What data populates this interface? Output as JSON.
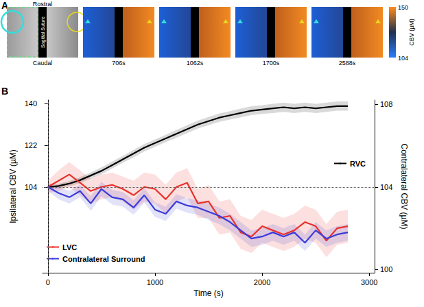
{
  "panel_a": {
    "label": "A",
    "orientation_labels": {
      "top": "Rostral",
      "bottom": "Caudal"
    },
    "midline_label": "Sagittal Suture",
    "frame_labels": [
      "706s",
      "1062s",
      "1700s",
      "2588s"
    ],
    "colorbar": {
      "label": "CBV (µM)",
      "range": [
        104,
        150
      ],
      "ticks": [
        104,
        150
      ]
    }
  },
  "chart_data": {
    "type": "line",
    "panel_label": "B",
    "x_label": "Time (s)",
    "y_label": "Ipsilateral CBV (µM)",
    "y2_label": "Contralateral CBV (µM)",
    "x": [
      0,
      100,
      200,
      300,
      400,
      500,
      600,
      700,
      800,
      900,
      1000,
      1100,
      1200,
      1300,
      1400,
      1500,
      1600,
      1700,
      1800,
      1900,
      2000,
      2100,
      2200,
      2300,
      2400,
      2500,
      2600,
      2700,
      2800
    ],
    "xlim": [
      -50,
      3050
    ],
    "xticks": [
      0,
      1000,
      2000,
      3000
    ],
    "ylim": [
      67,
      141.6
    ],
    "yticks": [
      104,
      122,
      140
    ],
    "y2lim": [
      99.85,
      108.2
    ],
    "y2ticks": [
      100,
      104,
      108
    ],
    "reference_lines": {
      "x": 0,
      "y": 104
    },
    "grid": false,
    "legend": true,
    "series": [
      {
        "name": "RVC",
        "color": "#000000",
        "axis": "y",
        "values": [
          104,
          104.5,
          105.5,
          107,
          109,
          111,
          113.5,
          116,
          118.5,
          121,
          123,
          125,
          127,
          129,
          131,
          132.5,
          134,
          135,
          136,
          137,
          137.5,
          138,
          138.5,
          138,
          138.5,
          138,
          138.5,
          139,
          139
        ],
        "error": [
          1,
          1,
          1.2,
          1.3,
          1.4,
          1.5,
          1.5,
          1.5,
          1.6,
          1.6,
          1.6,
          1.6,
          1.7,
          1.7,
          1.7,
          1.8,
          1.8,
          1.8,
          1.9,
          1.9,
          1.9,
          2,
          2,
          2,
          2,
          2,
          2,
          2,
          2
        ]
      },
      {
        "name": "LVC",
        "color": "#e8312a",
        "axis": "y2",
        "values": [
          104,
          104.3,
          104.6,
          104.2,
          103.8,
          104,
          104.1,
          103.9,
          103.6,
          104,
          103.9,
          103.4,
          104,
          104.2,
          103.2,
          103.3,
          102.5,
          102.6,
          101.8,
          101.6,
          102.1,
          101.9,
          101.7,
          101.9,
          102.3,
          102.1,
          101.4,
          102,
          102.1
        ],
        "error": [
          0.3,
          0.5,
          0.6,
          0.6,
          0.6,
          0.6,
          0.6,
          0.6,
          0.7,
          0.7,
          0.7,
          0.7,
          0.7,
          0.7,
          0.7,
          0.8,
          0.8,
          0.8,
          0.8,
          0.8,
          0.8,
          0.8,
          0.8,
          0.8,
          0.8,
          0.8,
          0.8,
          0.8,
          0.8
        ]
      },
      {
        "name": "Contralateral Surround",
        "color": "#3b3bd9",
        "axis": "y2",
        "values": [
          104,
          103.7,
          103.5,
          103.8,
          103.2,
          103.9,
          103.5,
          103.4,
          103,
          103.6,
          102.9,
          102.7,
          103.3,
          103.1,
          103,
          102.8,
          102.6,
          102.3,
          101.9,
          101.5,
          101.6,
          101.8,
          101.6,
          101.8,
          101.3,
          101.9,
          101.5,
          101.7,
          101.8
        ],
        "error": [
          0.2,
          0.3,
          0.3,
          0.3,
          0.35,
          0.35,
          0.35,
          0.35,
          0.35,
          0.35,
          0.35,
          0.35,
          0.35,
          0.35,
          0.35,
          0.4,
          0.4,
          0.4,
          0.4,
          0.4,
          0.4,
          0.4,
          0.4,
          0.4,
          0.4,
          0.4,
          0.4,
          0.4,
          0.4
        ]
      }
    ]
  }
}
